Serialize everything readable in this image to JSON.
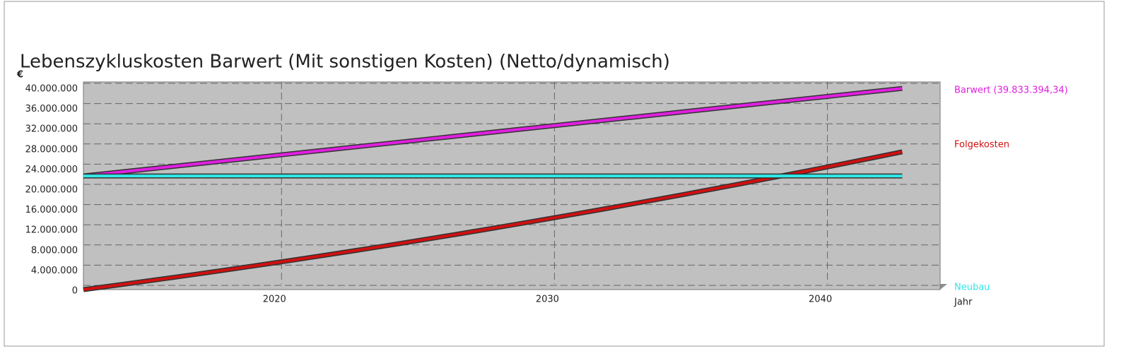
{
  "chart_data": {
    "type": "line",
    "title": "Lebenszykluskosten Barwert (Mit sonstigen Kosten) (Netto/dynamisch)",
    "y_unit": "€",
    "x_label": "Jahr",
    "x": [
      2013,
      2014,
      2015,
      2016,
      2017,
      2018,
      2019,
      2020,
      2021,
      2022,
      2023,
      2024,
      2025,
      2026,
      2027,
      2028,
      2029,
      2030,
      2031,
      2032,
      2033,
      2034,
      2035,
      2036,
      2037,
      2038,
      2039,
      2040,
      2041,
      2042,
      2043
    ],
    "xlim": [
      2013,
      2044
    ],
    "xticks": [
      2020,
      2030,
      2040
    ],
    "ylim": [
      0,
      40000000
    ],
    "yticks": [
      0,
      {
        "value": 4000000,
        "label": "4.000.000"
      },
      {
        "value": 8000000,
        "label": "8.000.000"
      },
      {
        "value": 12000000,
        "label": "12.000.000"
      },
      {
        "value": 16000000,
        "label": "16.000.000"
      },
      {
        "value": 20000000,
        "label": "20.000.000"
      },
      {
        "value": 24000000,
        "label": "24.000.000"
      },
      {
        "value": 28000000,
        "label": "28.000.000"
      },
      {
        "value": 32000000,
        "label": "32.000.000"
      },
      {
        "value": 36000000,
        "label": "36.000.000"
      },
      {
        "value": 40000000,
        "label": "40.000.000"
      }
    ],
    "grid": true,
    "series": [
      {
        "name": "Barwert (39.833.394,34)",
        "color": "#e020e0",
        "values": [
          22500000,
          23077800,
          23655600,
          24233300,
          24811100,
          25388900,
          25966700,
          26544500,
          27122300,
          27700000,
          28277800,
          28855600,
          29433400,
          30011200,
          30589000,
          31166700,
          31744500,
          32322300,
          32900100,
          33477900,
          34055700,
          34633400,
          35211200,
          35789000,
          36366800,
          36944600,
          37522400,
          38100100,
          38677900,
          39255700,
          39833394.34
        ]
      },
      {
        "name": "Folgekosten",
        "color": "#d01010",
        "values": [
          0,
          717000,
          1447000,
          2190000,
          2946000,
          3716000,
          4499000,
          5296000,
          6106000,
          6929000,
          7765000,
          8615000,
          9478000,
          10354000,
          11243000,
          12146000,
          13062000,
          13992000,
          14935000,
          15891000,
          16860000,
          17843000,
          18839000,
          19848000,
          20870000,
          21906000,
          22955000,
          24018000,
          25094000,
          26183000,
          27285000
        ]
      },
      {
        "name": "Neubau",
        "color": "#30e8e8",
        "values": [
          22500000,
          22500000,
          22500000,
          22500000,
          22500000,
          22500000,
          22500000,
          22500000,
          22500000,
          22500000,
          22500000,
          22500000,
          22500000,
          22500000,
          22500000,
          22500000,
          22500000,
          22500000,
          22500000,
          22500000,
          22500000,
          22500000,
          22500000,
          22500000,
          22500000,
          22500000,
          22500000,
          22500000,
          22500000,
          22500000,
          22500000
        ]
      }
    ]
  }
}
